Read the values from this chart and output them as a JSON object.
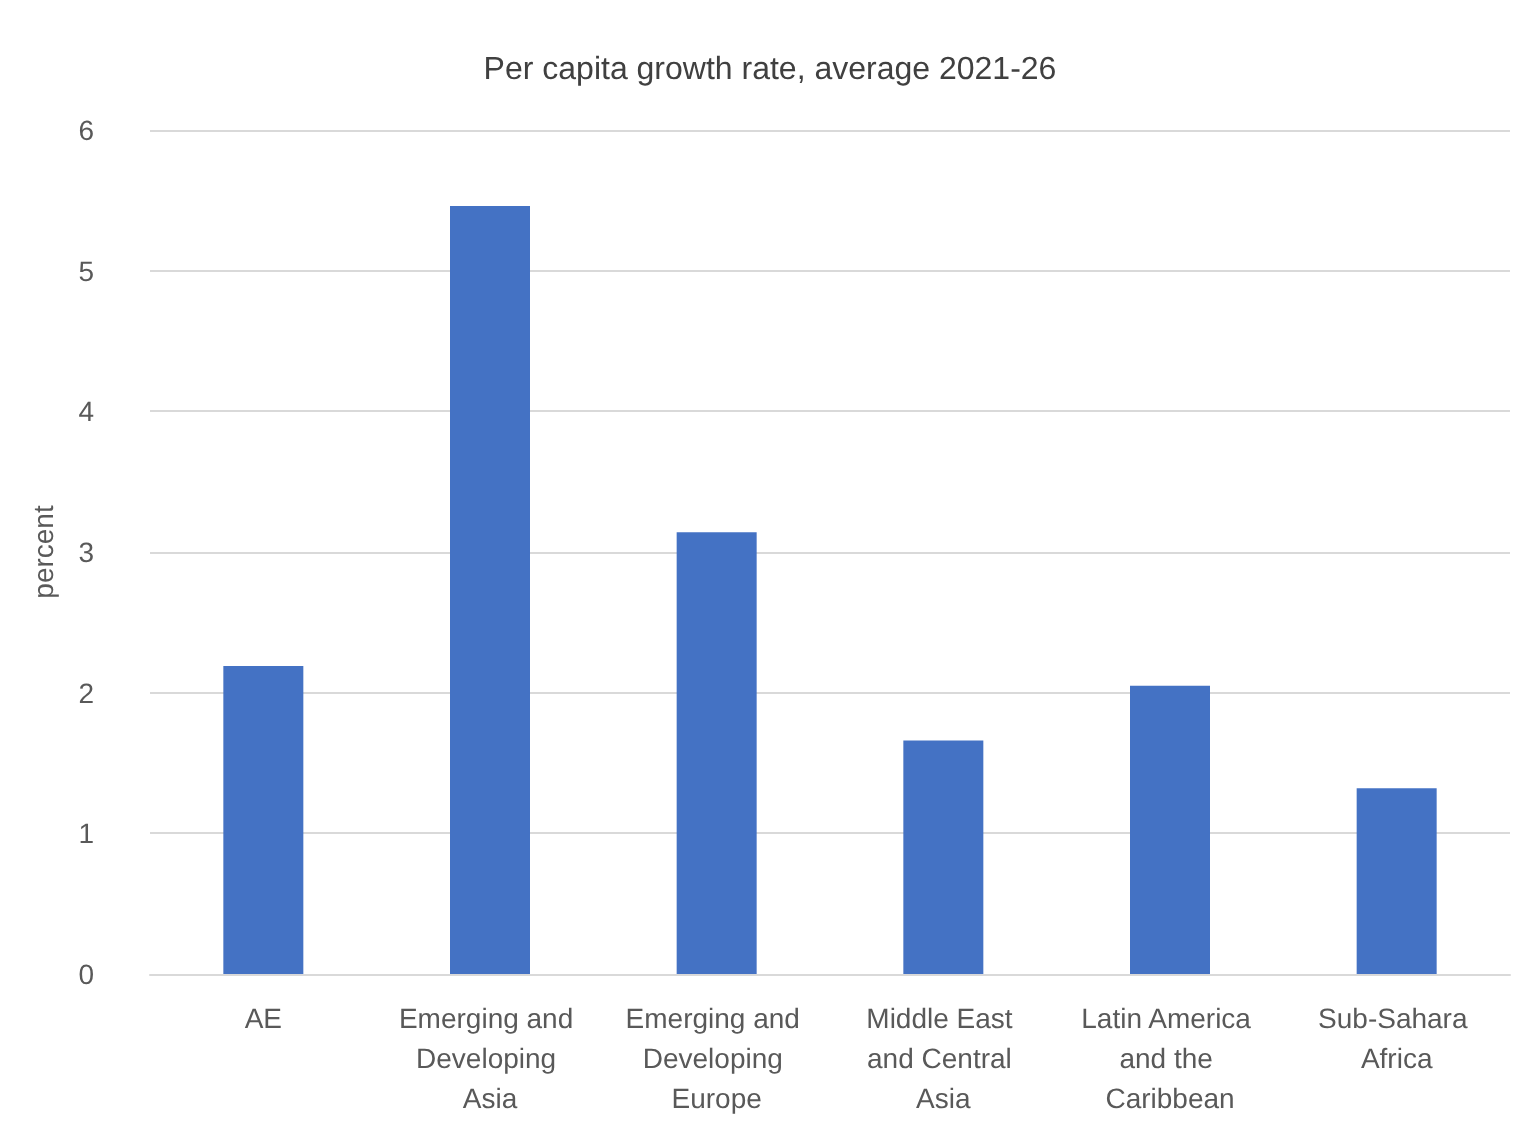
{
  "chart_data": {
    "type": "bar",
    "title": "Per capita growth rate, average 2021-26",
    "ylabel": "percent",
    "categories": [
      "AE",
      "Emerging and Developing Asia",
      "Emerging and Developing Europe",
      "Middle East and Central Asia",
      "Latin America and the Caribbean",
      "Sub-Sahara Africa"
    ],
    "values": [
      2.19,
      5.46,
      3.14,
      1.66,
      2.05,
      1.32
    ],
    "color": "#4472c4",
    "ylim": [
      0,
      6
    ],
    "yticks": [
      0,
      1,
      2,
      3,
      4,
      5,
      6
    ],
    "grid": "y"
  }
}
